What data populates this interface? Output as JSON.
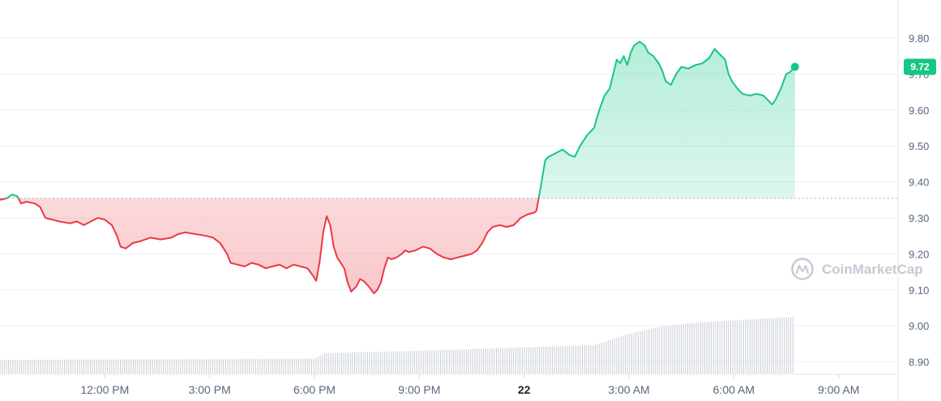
{
  "chart_data": {
    "type": "area",
    "title": "",
    "xlabel": "",
    "ylabel": "",
    "ylim": [
      8.88,
      9.84
    ],
    "yticks": [
      "9.80",
      "9.70",
      "9.60",
      "9.50",
      "9.40",
      "9.30",
      "9.20",
      "9.10",
      "9.00",
      "8.90"
    ],
    "xticks": [
      {
        "label": "12:00 PM",
        "t": 3
      },
      {
        "label": "3:00 PM",
        "t": 6
      },
      {
        "label": "6:00 PM",
        "t": 9
      },
      {
        "label": "9:00 PM",
        "t": 12
      },
      {
        "label": "22",
        "t": 15,
        "bold": true
      },
      {
        "label": "3:00 AM",
        "t": 18
      },
      {
        "label": "6:00 AM",
        "t": 21
      },
      {
        "label": "9:00 AM",
        "t": 24
      }
    ],
    "baseline": 9.355,
    "current_price": "9.72",
    "colors": {
      "up": "#16c784",
      "down": "#ea3943",
      "badge": "#16c784"
    },
    "grid": true,
    "series": [
      {
        "values": [
          [
            0.0,
            9.35
          ],
          [
            0.2,
            9.355
          ],
          [
            0.35,
            9.365
          ],
          [
            0.5,
            9.36
          ],
          [
            0.6,
            9.34
          ],
          [
            0.75,
            9.345
          ],
          [
            1.0,
            9.34
          ],
          [
            1.15,
            9.33
          ],
          [
            1.3,
            9.3
          ],
          [
            1.5,
            9.295
          ],
          [
            1.7,
            9.29
          ],
          [
            2.0,
            9.285
          ],
          [
            2.2,
            9.29
          ],
          [
            2.4,
            9.28
          ],
          [
            2.6,
            9.29
          ],
          [
            2.8,
            9.3
          ],
          [
            3.0,
            9.295
          ],
          [
            3.2,
            9.28
          ],
          [
            3.35,
            9.25
          ],
          [
            3.45,
            9.22
          ],
          [
            3.6,
            9.215
          ],
          [
            3.8,
            9.23
          ],
          [
            4.0,
            9.235
          ],
          [
            4.3,
            9.245
          ],
          [
            4.6,
            9.24
          ],
          [
            4.9,
            9.245
          ],
          [
            5.1,
            9.255
          ],
          [
            5.3,
            9.26
          ],
          [
            5.6,
            9.255
          ],
          [
            5.9,
            9.25
          ],
          [
            6.1,
            9.245
          ],
          [
            6.3,
            9.23
          ],
          [
            6.5,
            9.2
          ],
          [
            6.6,
            9.175
          ],
          [
            6.8,
            9.17
          ],
          [
            7.0,
            9.165
          ],
          [
            7.2,
            9.175
          ],
          [
            7.4,
            9.17
          ],
          [
            7.6,
            9.16
          ],
          [
            7.8,
            9.165
          ],
          [
            8.0,
            9.17
          ],
          [
            8.2,
            9.16
          ],
          [
            8.4,
            9.17
          ],
          [
            8.6,
            9.165
          ],
          [
            8.8,
            9.16
          ],
          [
            8.95,
            9.14
          ],
          [
            9.05,
            9.125
          ],
          [
            9.15,
            9.18
          ],
          [
            9.25,
            9.26
          ],
          [
            9.35,
            9.305
          ],
          [
            9.45,
            9.28
          ],
          [
            9.55,
            9.22
          ],
          [
            9.65,
            9.19
          ],
          [
            9.75,
            9.175
          ],
          [
            9.85,
            9.16
          ],
          [
            9.95,
            9.12
          ],
          [
            10.05,
            9.095
          ],
          [
            10.2,
            9.11
          ],
          [
            10.3,
            9.13
          ],
          [
            10.4,
            9.125
          ],
          [
            10.55,
            9.11
          ],
          [
            10.7,
            9.09
          ],
          [
            10.8,
            9.1
          ],
          [
            10.9,
            9.12
          ],
          [
            11.0,
            9.16
          ],
          [
            11.1,
            9.19
          ],
          [
            11.2,
            9.185
          ],
          [
            11.35,
            9.19
          ],
          [
            11.5,
            9.2
          ],
          [
            11.6,
            9.21
          ],
          [
            11.7,
            9.205
          ],
          [
            11.9,
            9.21
          ],
          [
            12.1,
            9.22
          ],
          [
            12.3,
            9.215
          ],
          [
            12.5,
            9.2
          ],
          [
            12.7,
            9.19
          ],
          [
            12.9,
            9.185
          ],
          [
            13.1,
            9.19
          ],
          [
            13.3,
            9.195
          ],
          [
            13.5,
            9.2
          ],
          [
            13.65,
            9.21
          ],
          [
            13.8,
            9.23
          ],
          [
            13.95,
            9.26
          ],
          [
            14.1,
            9.275
          ],
          [
            14.3,
            9.28
          ],
          [
            14.5,
            9.275
          ],
          [
            14.7,
            9.28
          ],
          [
            14.9,
            9.3
          ],
          [
            15.1,
            9.31
          ],
          [
            15.3,
            9.315
          ],
          [
            15.35,
            9.32
          ],
          [
            15.5,
            9.4
          ],
          [
            15.6,
            9.46
          ],
          [
            15.7,
            9.47
          ],
          [
            15.9,
            9.48
          ],
          [
            16.1,
            9.49
          ],
          [
            16.3,
            9.475
          ],
          [
            16.45,
            9.47
          ],
          [
            16.6,
            9.5
          ],
          [
            16.8,
            9.53
          ],
          [
            17.0,
            9.55
          ],
          [
            17.15,
            9.6
          ],
          [
            17.3,
            9.64
          ],
          [
            17.45,
            9.66
          ],
          [
            17.55,
            9.7
          ],
          [
            17.65,
            9.74
          ],
          [
            17.75,
            9.73
          ],
          [
            17.85,
            9.75
          ],
          [
            17.95,
            9.725
          ],
          [
            18.05,
            9.76
          ],
          [
            18.15,
            9.78
          ],
          [
            18.3,
            9.79
          ],
          [
            18.45,
            9.78
          ],
          [
            18.55,
            9.76
          ],
          [
            18.7,
            9.75
          ],
          [
            18.85,
            9.73
          ],
          [
            18.95,
            9.71
          ],
          [
            19.05,
            9.68
          ],
          [
            19.2,
            9.67
          ],
          [
            19.35,
            9.7
          ],
          [
            19.5,
            9.72
          ],
          [
            19.7,
            9.715
          ],
          [
            19.9,
            9.725
          ],
          [
            20.1,
            9.73
          ],
          [
            20.3,
            9.745
          ],
          [
            20.45,
            9.77
          ],
          [
            20.6,
            9.755
          ],
          [
            20.75,
            9.74
          ],
          [
            20.85,
            9.7
          ],
          [
            20.95,
            9.68
          ],
          [
            21.1,
            9.66
          ],
          [
            21.25,
            9.645
          ],
          [
            21.45,
            9.64
          ],
          [
            21.65,
            9.645
          ],
          [
            21.85,
            9.64
          ],
          [
            22.0,
            9.625
          ],
          [
            22.1,
            9.615
          ],
          [
            22.2,
            9.63
          ],
          [
            22.35,
            9.66
          ],
          [
            22.5,
            9.7
          ],
          [
            22.6,
            9.705
          ],
          [
            22.75,
            9.72
          ]
        ]
      }
    ],
    "volume": [
      [
        0.0,
        0.12
      ],
      [
        9.0,
        0.13
      ],
      [
        9.3,
        0.18
      ],
      [
        12.0,
        0.2
      ],
      [
        17.0,
        0.25
      ],
      [
        18.0,
        0.35
      ],
      [
        19.0,
        0.42
      ],
      [
        20.0,
        0.45
      ],
      [
        22.75,
        0.5
      ]
    ]
  },
  "watermark": {
    "text": "CoinMarketCap",
    "icon": "coinmarketcap-logo-icon"
  }
}
